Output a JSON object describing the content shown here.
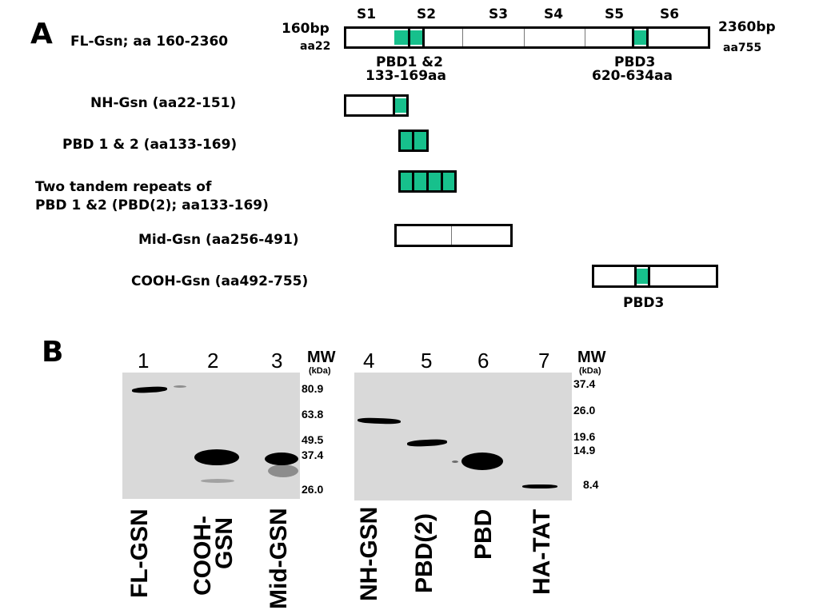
{
  "panel_a": {
    "letter": "A",
    "fl_label": "FL-Gsn; aa 160-2360",
    "start_bp": "160bp",
    "start_aa": "aa22",
    "end_bp": "2360bp",
    "end_aa": "aa755",
    "segments": [
      "S1",
      "S2",
      "S3",
      "S4",
      "S5",
      "S6"
    ],
    "pbd12_label": "PBD1 &2",
    "pbd12_range": "133-169aa",
    "pbd3_label": "PBD3",
    "pbd3_range": "620-634aa",
    "constructs": [
      {
        "label": "NH-Gsn (aa22-151)"
      },
      {
        "label": "PBD 1 & 2 (aa133-169)"
      },
      {
        "label_line1": "Two tandem repeats of",
        "label_line2": "PBD 1 &2 (PBD(2); aa133-169)"
      },
      {
        "label": "Mid-Gsn (aa256-491)"
      },
      {
        "label": "COOH-Gsn (aa492-755)",
        "sublabel": "PBD3"
      }
    ],
    "pbd_color": "#17c08c"
  },
  "panel_b": {
    "letter": "B",
    "mw_header": "MW",
    "kda": "(kDa)",
    "left_gel": {
      "lanes": [
        "1",
        "2",
        "3"
      ],
      "markers": [
        "80.9",
        "63.8",
        "49.5",
        "37.4",
        "26.0"
      ],
      "lane_labels": [
        "FL-GSN",
        "COOH-",
        "GSN",
        "Mid-GSN"
      ]
    },
    "right_gel": {
      "lanes": [
        "4",
        "5",
        "6",
        "7"
      ],
      "markers": [
        "37.4",
        "26.0",
        "19.6",
        "14.9",
        "8.4"
      ],
      "lane_labels": [
        "NH-GSN",
        "PBD(2)",
        "PBD",
        "HA-TAT"
      ]
    }
  }
}
